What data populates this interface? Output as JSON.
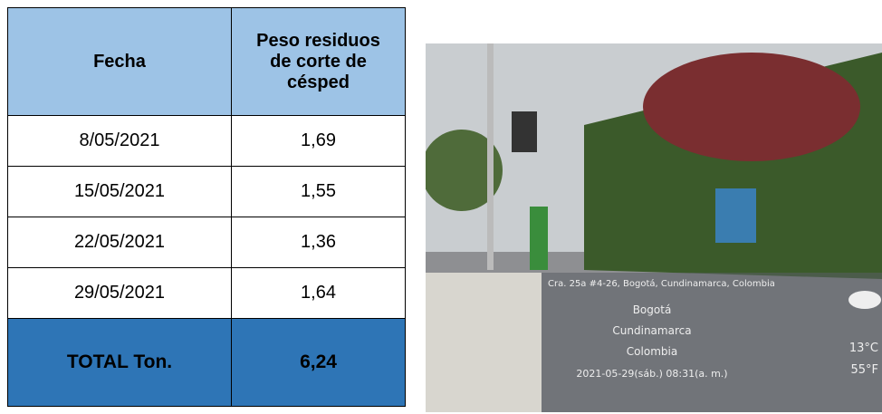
{
  "table": {
    "header": [
      "Fecha",
      "Peso residuos de corte de césped"
    ],
    "rows": [
      [
        "8/05/2021",
        "1,69"
      ],
      [
        "15/05/2021",
        "1,55"
      ],
      [
        "22/05/2021",
        "1,36"
      ],
      [
        "29/05/2021",
        "1,64"
      ]
    ],
    "total": [
      "TOTAL Ton.",
      "6,24"
    ]
  },
  "photo": {
    "address": "Cra. 25a #4-26, Bogotá, Cundinamarca, Colombia",
    "city": "Bogotá",
    "region": "Cundinamarca",
    "country": "Colombia",
    "temp_c": "13°C",
    "temp_f": "55°F",
    "timestamp": "2021-05-29(sáb.) 08:31(a. m.)"
  }
}
